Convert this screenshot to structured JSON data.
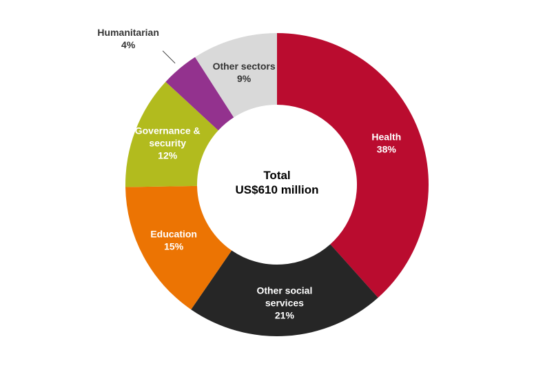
{
  "chart_data": {
    "type": "pie",
    "variant": "donut",
    "center_text": [
      "Total",
      "US$610 million"
    ],
    "total": 610,
    "unit": "US$ million",
    "slices": [
      {
        "label": [
          "Health",
          "38%"
        ],
        "value": 38,
        "color": "#BA0C2F",
        "text_color": "#ffffff"
      },
      {
        "label": [
          "Other social",
          "services",
          "21%"
        ],
        "value": 21,
        "color": "#262626",
        "text_color": "#ffffff"
      },
      {
        "label": [
          "Education",
          "15%"
        ],
        "value": 15,
        "color": "#EC7403",
        "text_color": "#ffffff"
      },
      {
        "label": [
          "Governance &",
          "security",
          "12%"
        ],
        "value": 12,
        "color": "#B2BB1E",
        "text_color": "#ffffff"
      },
      {
        "label": [
          "Humanitarian",
          "4%"
        ],
        "value": 4,
        "color": "#93328E",
        "text_color": "#333333",
        "callout": true
      },
      {
        "label": [
          "Other sectors",
          "9%"
        ],
        "value": 9,
        "color": "#D9D9D9",
        "text_color": "#333333"
      }
    ],
    "start": "12 o'clock",
    "direction": "clockwise",
    "legend": "none"
  }
}
